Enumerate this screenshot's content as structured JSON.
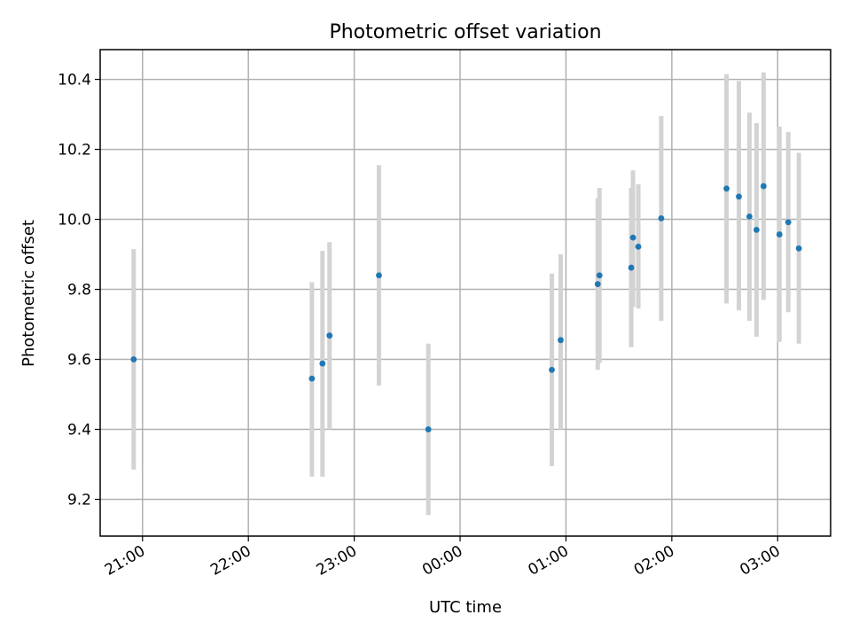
{
  "chart_data": {
    "type": "scatter",
    "title": "Photometric offset variation",
    "xlabel": "UTC time",
    "ylabel": "Photometric offset",
    "x_ticks": [
      "21:00",
      "22:00",
      "23:00",
      "00:00",
      "01:00",
      "02:00",
      "03:00"
    ],
    "y_ticks": [
      "9.2",
      "9.4",
      "9.6",
      "9.8",
      "10.0",
      "10.2",
      "10.4"
    ],
    "x_tick_values": [
      "21:00",
      "22:00",
      "23:00",
      "00:00",
      "01:00",
      "02:00",
      "03:00"
    ],
    "y_tick_values": [
      9.2,
      9.4,
      9.6,
      9.8,
      10.0,
      10.2,
      10.4
    ],
    "xlim": [
      "20:36",
      "03:30"
    ],
    "ylim": [
      9.095,
      10.485
    ],
    "grid": true,
    "marker_color": "#1f77b4",
    "errorbar_color": "#d3d3d3",
    "points": [
      {
        "time": "20:55",
        "y": 9.6,
        "ylow": 9.285,
        "yhigh": 9.915
      },
      {
        "time": "22:36",
        "y": 9.545,
        "ylow": 9.265,
        "yhigh": 9.82
      },
      {
        "time": "22:42",
        "y": 9.588,
        "ylow": 9.265,
        "yhigh": 9.91
      },
      {
        "time": "22:46",
        "y": 9.668,
        "ylow": 9.4,
        "yhigh": 9.935
      },
      {
        "time": "23:14",
        "y": 9.84,
        "ylow": 9.525,
        "yhigh": 10.155
      },
      {
        "time": "23:42",
        "y": 9.4,
        "ylow": 9.155,
        "yhigh": 9.645
      },
      {
        "time": "00:52",
        "y": 9.57,
        "ylow": 9.295,
        "yhigh": 9.845
      },
      {
        "time": "00:57",
        "y": 9.655,
        "ylow": 9.4,
        "yhigh": 9.9
      },
      {
        "time": "01:18",
        "y": 9.815,
        "ylow": 9.57,
        "yhigh": 10.06
      },
      {
        "time": "01:19",
        "y": 9.84,
        "ylow": 9.59,
        "yhigh": 10.09
      },
      {
        "time": "01:37",
        "y": 9.862,
        "ylow": 9.635,
        "yhigh": 10.09
      },
      {
        "time": "01:38",
        "y": 9.948,
        "ylow": 9.75,
        "yhigh": 10.14
      },
      {
        "time": "01:41",
        "y": 9.922,
        "ylow": 9.745,
        "yhigh": 10.1
      },
      {
        "time": "01:54",
        "y": 10.003,
        "ylow": 9.71,
        "yhigh": 10.295
      },
      {
        "time": "02:31",
        "y": 10.088,
        "ylow": 9.76,
        "yhigh": 10.415
      },
      {
        "time": "02:38",
        "y": 10.065,
        "ylow": 9.74,
        "yhigh": 10.395
      },
      {
        "time": "02:44",
        "y": 10.008,
        "ylow": 9.71,
        "yhigh": 10.305
      },
      {
        "time": "02:48",
        "y": 9.97,
        "ylow": 9.665,
        "yhigh": 10.275
      },
      {
        "time": "02:52",
        "y": 10.095,
        "ylow": 9.77,
        "yhigh": 10.42
      },
      {
        "time": "03:01",
        "y": 9.957,
        "ylow": 9.65,
        "yhigh": 10.265
      },
      {
        "time": "03:06",
        "y": 9.992,
        "ylow": 9.735,
        "yhigh": 10.25
      },
      {
        "time": "03:12",
        "y": 9.917,
        "ylow": 9.645,
        "yhigh": 10.19
      }
    ]
  }
}
